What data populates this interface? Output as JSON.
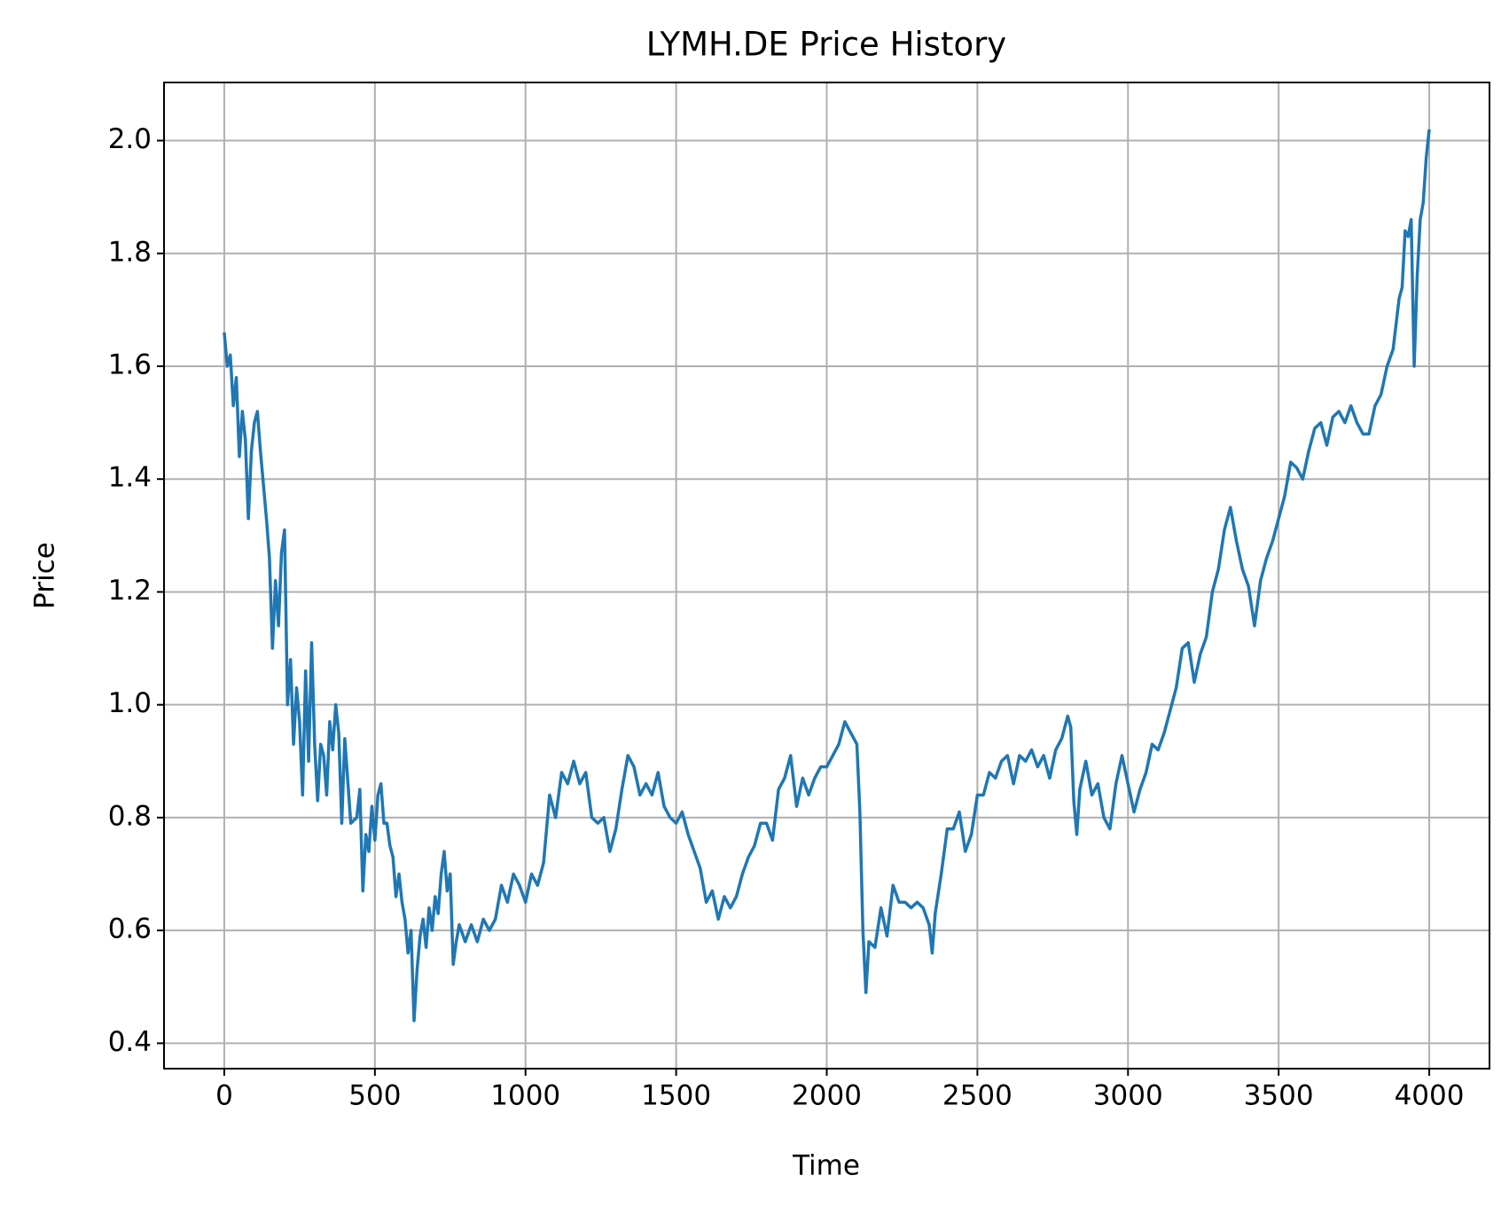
{
  "chart_data": {
    "type": "line",
    "title": "LYMH.DE Price History",
    "xlabel": "Time",
    "ylabel": "Price",
    "x": [
      0,
      10,
      20,
      30,
      40,
      50,
      60,
      70,
      80,
      90,
      100,
      110,
      120,
      130,
      140,
      150,
      160,
      170,
      180,
      190,
      200,
      210,
      220,
      230,
      240,
      250,
      260,
      270,
      280,
      290,
      300,
      310,
      320,
      330,
      340,
      350,
      360,
      370,
      380,
      390,
      400,
      420,
      440,
      450,
      460,
      470,
      480,
      490,
      500,
      510,
      520,
      530,
      540,
      550,
      560,
      570,
      580,
      590,
      600,
      610,
      620,
      630,
      640,
      650,
      660,
      670,
      680,
      690,
      700,
      710,
      720,
      730,
      740,
      750,
      760,
      770,
      780,
      800,
      820,
      840,
      860,
      880,
      900,
      920,
      940,
      960,
      980,
      1000,
      1020,
      1040,
      1060,
      1080,
      1100,
      1120,
      1140,
      1160,
      1180,
      1200,
      1220,
      1240,
      1260,
      1280,
      1300,
      1320,
      1340,
      1360,
      1380,
      1400,
      1420,
      1440,
      1460,
      1480,
      1500,
      1520,
      1540,
      1560,
      1580,
      1600,
      1620,
      1640,
      1660,
      1680,
      1700,
      1720,
      1740,
      1760,
      1780,
      1800,
      1820,
      1840,
      1860,
      1880,
      1900,
      1920,
      1940,
      1960,
      1980,
      2000,
      2020,
      2040,
      2060,
      2080,
      2100,
      2110,
      2120,
      2130,
      2140,
      2160,
      2180,
      2200,
      2220,
      2240,
      2260,
      2280,
      2300,
      2320,
      2340,
      2350,
      2360,
      2380,
      2400,
      2420,
      2440,
      2460,
      2480,
      2500,
      2520,
      2540,
      2560,
      2580,
      2600,
      2620,
      2640,
      2660,
      2680,
      2700,
      2720,
      2740,
      2760,
      2780,
      2800,
      2810,
      2820,
      2830,
      2840,
      2860,
      2880,
      2900,
      2920,
      2940,
      2960,
      2980,
      3000,
      3020,
      3040,
      3060,
      3080,
      3100,
      3120,
      3140,
      3160,
      3180,
      3200,
      3220,
      3240,
      3260,
      3280,
      3300,
      3320,
      3340,
      3360,
      3380,
      3400,
      3420,
      3440,
      3460,
      3480,
      3500,
      3520,
      3540,
      3560,
      3580,
      3600,
      3620,
      3640,
      3660,
      3680,
      3700,
      3720,
      3740,
      3760,
      3780,
      3800,
      3820,
      3840,
      3860,
      3880,
      3900,
      3910,
      3920,
      3930,
      3940,
      3950,
      3960,
      3970,
      3980,
      3990,
      4000
    ],
    "series": [
      {
        "color": "#1f77b4",
        "values": [
          1.66,
          1.6,
          1.62,
          1.53,
          1.58,
          1.44,
          1.52,
          1.47,
          1.33,
          1.45,
          1.5,
          1.52,
          1.45,
          1.39,
          1.33,
          1.26,
          1.1,
          1.22,
          1.14,
          1.27,
          1.31,
          1.0,
          1.08,
          0.93,
          1.03,
          0.97,
          0.84,
          1.06,
          0.9,
          1.11,
          0.93,
          0.83,
          0.93,
          0.91,
          0.84,
          0.97,
          0.92,
          1.0,
          0.95,
          0.79,
          0.94,
          0.79,
          0.8,
          0.85,
          0.67,
          0.77,
          0.74,
          0.82,
          0.76,
          0.84,
          0.86,
          0.79,
          0.79,
          0.75,
          0.73,
          0.66,
          0.7,
          0.65,
          0.62,
          0.56,
          0.6,
          0.44,
          0.53,
          0.59,
          0.62,
          0.57,
          0.64,
          0.6,
          0.66,
          0.63,
          0.7,
          0.74,
          0.67,
          0.7,
          0.54,
          0.58,
          0.61,
          0.58,
          0.61,
          0.58,
          0.62,
          0.6,
          0.62,
          0.68,
          0.65,
          0.7,
          0.68,
          0.65,
          0.7,
          0.68,
          0.72,
          0.84,
          0.8,
          0.88,
          0.86,
          0.9,
          0.86,
          0.88,
          0.8,
          0.79,
          0.8,
          0.74,
          0.78,
          0.85,
          0.91,
          0.89,
          0.84,
          0.86,
          0.84,
          0.88,
          0.82,
          0.8,
          0.79,
          0.81,
          0.77,
          0.74,
          0.71,
          0.65,
          0.67,
          0.62,
          0.66,
          0.64,
          0.66,
          0.7,
          0.73,
          0.75,
          0.79,
          0.79,
          0.76,
          0.85,
          0.87,
          0.91,
          0.82,
          0.87,
          0.84,
          0.87,
          0.89,
          0.89,
          0.91,
          0.93,
          0.97,
          0.95,
          0.93,
          0.81,
          0.6,
          0.49,
          0.58,
          0.57,
          0.64,
          0.59,
          0.68,
          0.65,
          0.65,
          0.64,
          0.65,
          0.64,
          0.61,
          0.56,
          0.63,
          0.7,
          0.78,
          0.78,
          0.81,
          0.74,
          0.77,
          0.84,
          0.84,
          0.88,
          0.87,
          0.9,
          0.91,
          0.86,
          0.91,
          0.9,
          0.92,
          0.89,
          0.91,
          0.87,
          0.92,
          0.94,
          0.98,
          0.96,
          0.83,
          0.77,
          0.85,
          0.9,
          0.84,
          0.86,
          0.8,
          0.78,
          0.86,
          0.91,
          0.86,
          0.81,
          0.85,
          0.88,
          0.93,
          0.92,
          0.95,
          0.99,
          1.03,
          1.1,
          1.11,
          1.04,
          1.09,
          1.12,
          1.2,
          1.24,
          1.31,
          1.35,
          1.29,
          1.24,
          1.21,
          1.14,
          1.22,
          1.26,
          1.29,
          1.33,
          1.37,
          1.43,
          1.42,
          1.4,
          1.45,
          1.49,
          1.5,
          1.46,
          1.51,
          1.52,
          1.5,
          1.53,
          1.5,
          1.48,
          1.48,
          1.53,
          1.55,
          1.6,
          1.63,
          1.72,
          1.74,
          1.84,
          1.83,
          1.86,
          1.6,
          1.76,
          1.86,
          1.89,
          1.97,
          2.02
        ]
      }
    ],
    "xlim": [
      -200,
      4200
    ],
    "ylim": [
      0.355,
      2.103
    ],
    "xticks": [
      0,
      500,
      1000,
      1500,
      2000,
      2500,
      3000,
      3500,
      4000
    ],
    "yticks": [
      {
        "value": 0.4,
        "label": "0.4"
      },
      {
        "value": 0.6,
        "label": "0.6"
      },
      {
        "value": 0.8,
        "label": "0.8"
      },
      {
        "value": 1,
        "label": "1.0"
      },
      {
        "value": 1.2,
        "label": "1.2"
      },
      {
        "value": 1.4,
        "label": "1.4"
      },
      {
        "value": 1.6,
        "label": "1.6"
      },
      {
        "value": 1.8,
        "label": "1.8"
      },
      {
        "value": 2,
        "label": "2.0"
      }
    ],
    "grid": true
  }
}
